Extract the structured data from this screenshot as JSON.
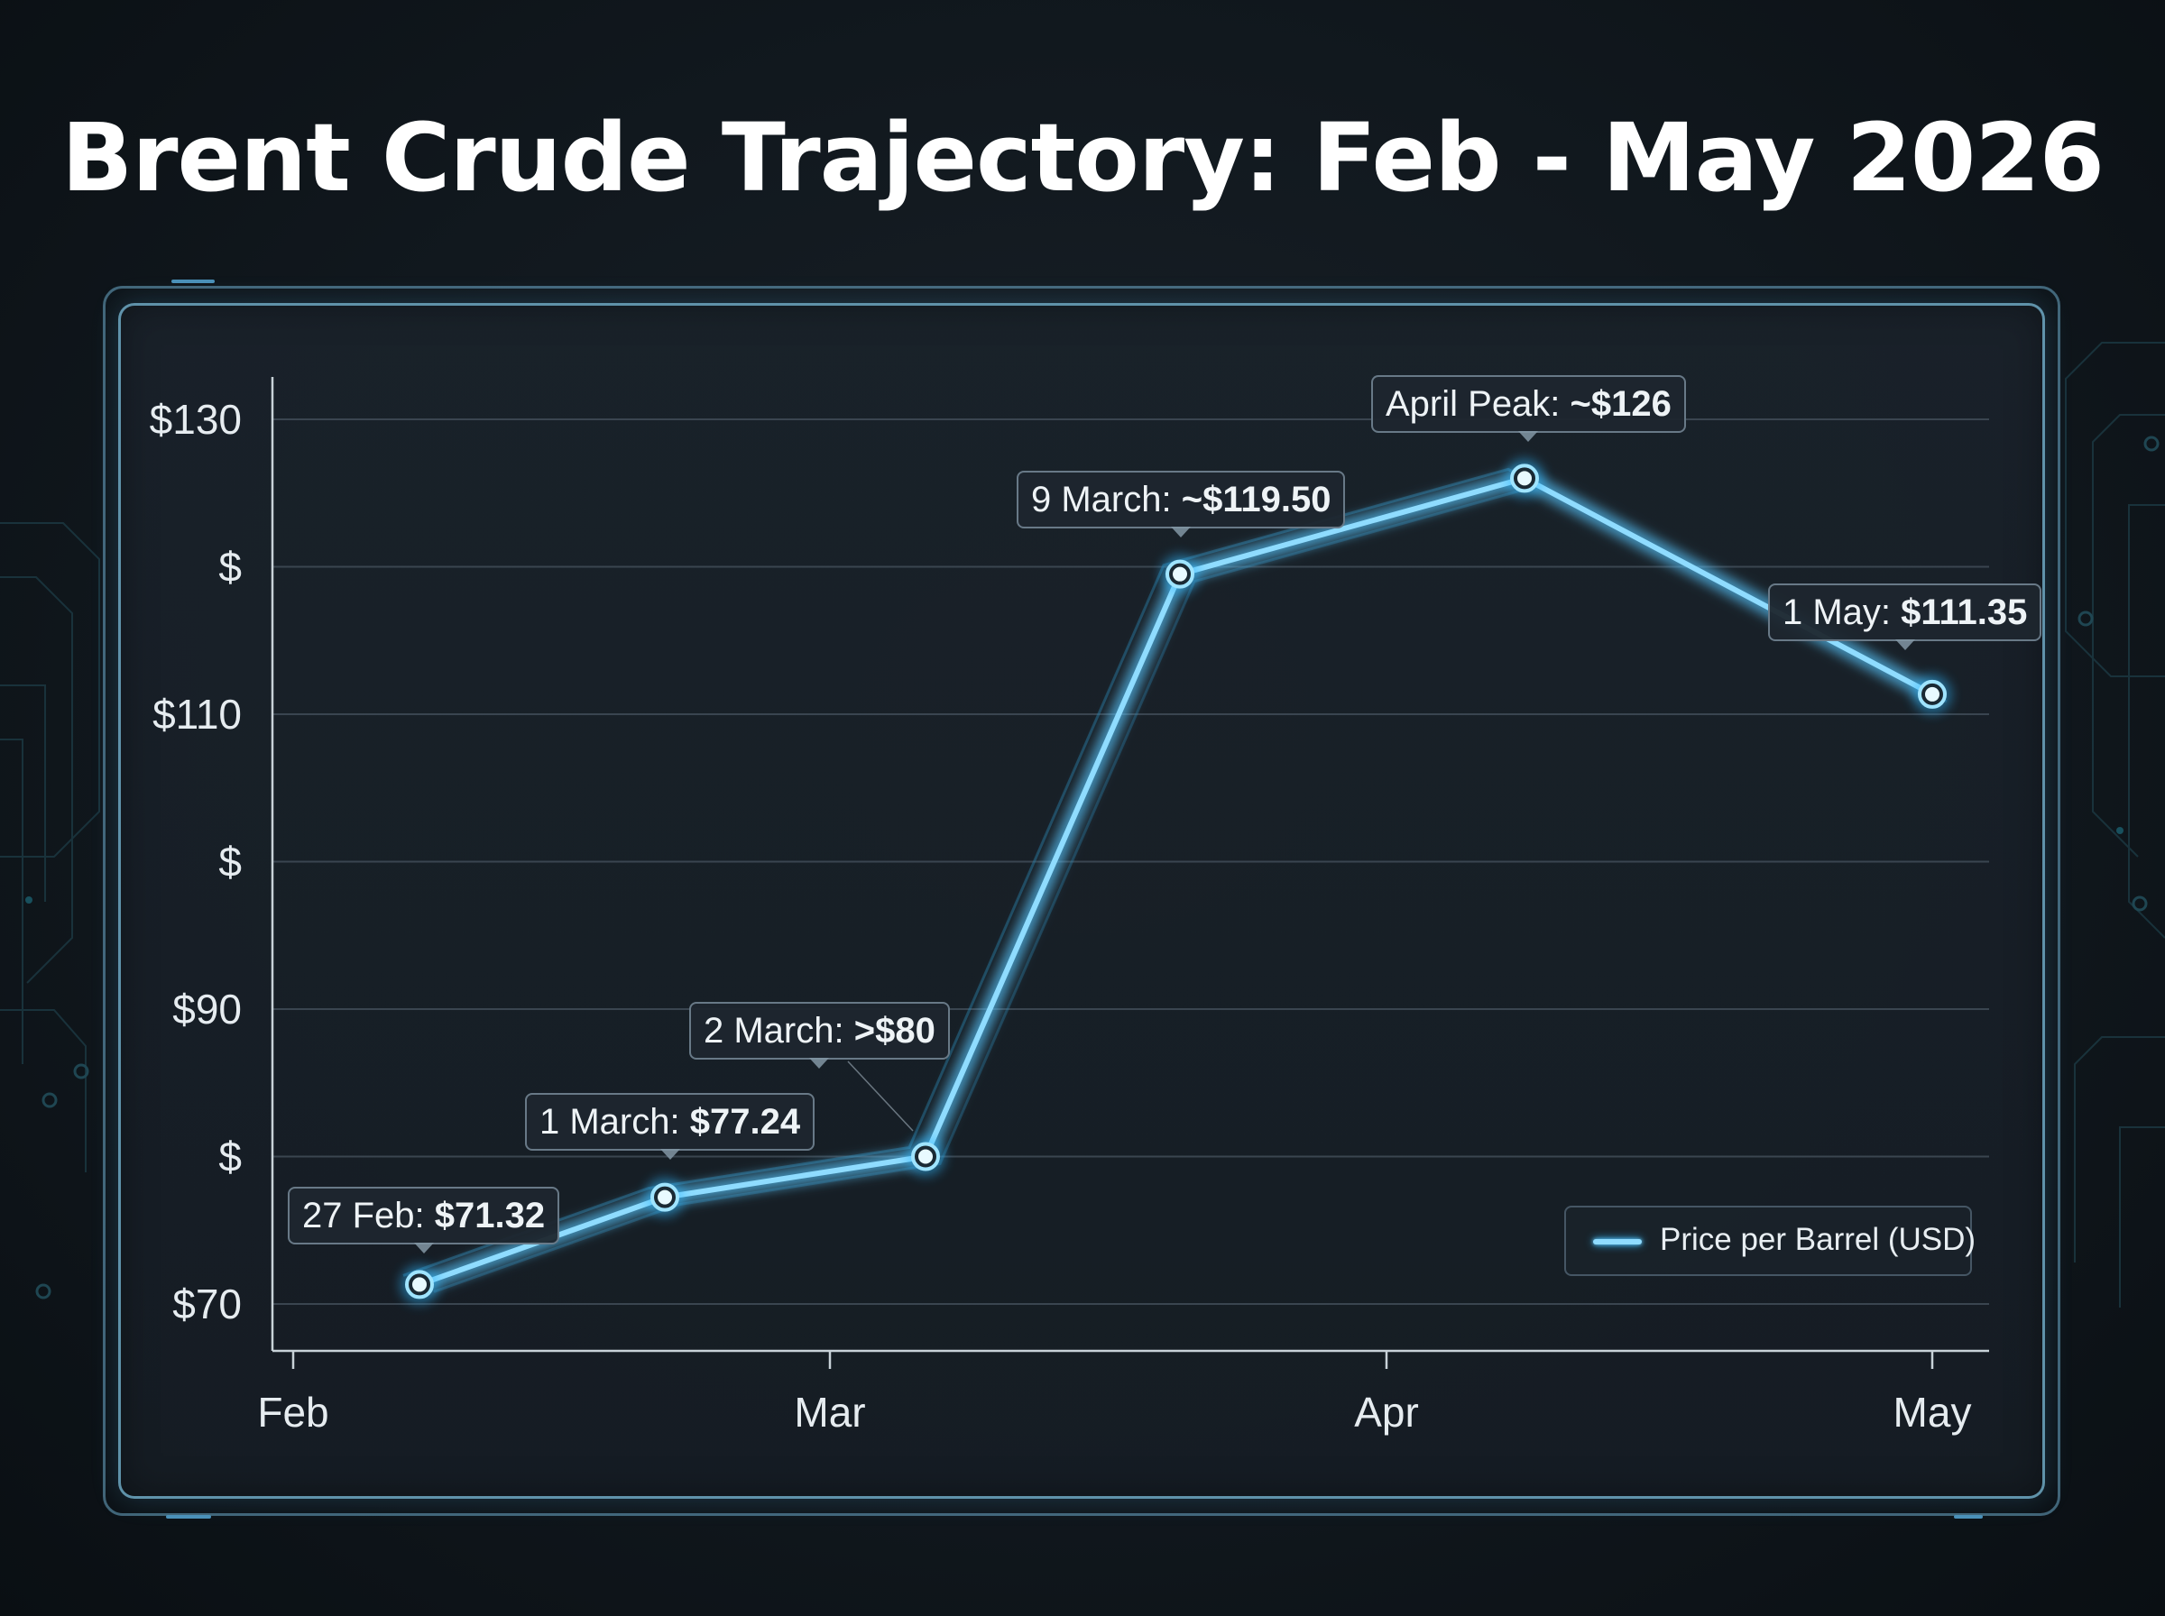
{
  "title": "Brent Crude Trajectory: Feb - May 2026",
  "colors": {
    "line": "#8fdcff",
    "glow": "#2fb8ff",
    "grid": "#3a4550",
    "background": "#11181e"
  },
  "chart_data": {
    "type": "line",
    "title": "Brent Crude Trajectory: Feb - May 2026",
    "xlabel": "",
    "ylabel": "",
    "ylim": [
      63.5,
      135
    ],
    "y_ticks": [
      {
        "value": 130,
        "label": "$130"
      },
      {
        "value": 120,
        "label": "$"
      },
      {
        "value": 110,
        "label": "$110"
      },
      {
        "value": 100,
        "label": "$"
      },
      {
        "value": 90,
        "label": "$90"
      },
      {
        "value": 80,
        "label": "$"
      },
      {
        "value": 70,
        "label": "$70"
      }
    ],
    "x_ticks": [
      "Feb",
      "Mar",
      "Apr",
      "May"
    ],
    "grid": true,
    "legend_position": "bottom-right",
    "series": [
      {
        "name": "Price per Barrel (USD)",
        "points": [
          {
            "x": "27 Feb",
            "y": 71.32
          },
          {
            "x": "1 March",
            "y": 77.24
          },
          {
            "x": "2 March",
            "y": 80
          },
          {
            "x": "9 March",
            "y": 119.5
          },
          {
            "x": "April Peak",
            "y": 126
          },
          {
            "x": "1 May",
            "y": 111.35
          }
        ]
      }
    ],
    "annotations": [
      {
        "prefix": "27 Feb: ",
        "value": "$71.32"
      },
      {
        "prefix": "1 March: ",
        "value": "$77.24"
      },
      {
        "prefix": "2 March: ",
        "value": ">$80"
      },
      {
        "prefix": "9 March: ",
        "value": "~$119.50"
      },
      {
        "prefix": "April Peak: ",
        "value": "~$126"
      },
      {
        "prefix": "1 May: ",
        "value": "$111.35"
      }
    ]
  }
}
